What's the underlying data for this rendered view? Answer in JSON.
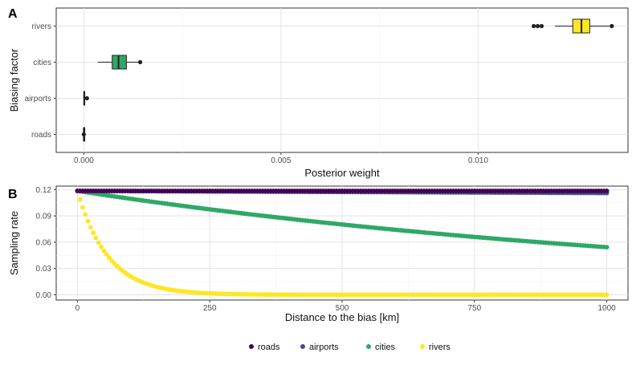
{
  "chart_data": [
    {
      "panel_tag": "A",
      "type": "box",
      "orientation": "horizontal",
      "xlabel": "Posterior weight",
      "ylabel": "Biasing factor",
      "xlim": [
        -0.0007,
        0.0138
      ],
      "xticks": [
        0.0,
        0.005,
        0.01
      ],
      "xtick_labels": [
        "0.000",
        "0.005",
        "0.010"
      ],
      "grid": true,
      "categories": [
        "roads",
        "airports",
        "cities",
        "rivers"
      ],
      "boxes": [
        {
          "category": "roads",
          "color": "#440154",
          "lower_whisker": 0.0,
          "q1": 0.0,
          "median": 0.0,
          "q3": 0.0,
          "upper_whisker": 2e-05,
          "outliers": [
            0.0
          ]
        },
        {
          "category": "airports",
          "color": "#3b528b",
          "lower_whisker": 0.0,
          "q1": 0.0,
          "median": 1e-05,
          "q3": 2e-05,
          "upper_whisker": 4e-05,
          "outliers": [
            8e-05
          ]
        },
        {
          "category": "cities",
          "color": "#2fa866",
          "lower_whisker": 0.00035,
          "q1": 0.00072,
          "median": 0.00088,
          "q3": 0.00108,
          "upper_whisker": 0.00143,
          "outliers": [
            0.00143
          ]
        },
        {
          "category": "rivers",
          "color": "#fde725",
          "lower_whisker": 0.01195,
          "q1": 0.0124,
          "median": 0.01262,
          "q3": 0.01283,
          "upper_whisker": 0.01339,
          "outliers": [
            0.01141,
            0.01151,
            0.01161,
            0.01339
          ]
        }
      ]
    },
    {
      "panel_tag": "B",
      "type": "scatter",
      "xlabel": "Distance to the bias [km]",
      "ylabel": "Sampling rate",
      "xlim": [
        -40,
        1040
      ],
      "ylim": [
        -0.006,
        0.124
      ],
      "xticks": [
        0,
        250,
        500,
        750,
        1000
      ],
      "xtick_labels": [
        "0",
        "250",
        "500",
        "750",
        "1000"
      ],
      "yticks": [
        0.0,
        0.03,
        0.06,
        0.09,
        0.12
      ],
      "ytick_labels": [
        "0.00",
        "0.03",
        "0.06",
        "0.09",
        "0.12"
      ],
      "grid": true,
      "legend_position": "bottom",
      "x_range": [
        0,
        1000
      ],
      "n_points": 201,
      "series": [
        {
          "name": "roads",
          "color": "#440154",
          "y0": 0.1185,
          "decay_per_km": 0.0
        },
        {
          "name": "airports",
          "color": "#3b528b",
          "y0": 0.1185,
          "decay_per_km": 2e-05
        },
        {
          "name": "cities",
          "color": "#2fa866",
          "y0": 0.1185,
          "decay_per_km": 0.00078
        },
        {
          "name": "rivers",
          "color": "#fde725",
          "y0": 0.1185,
          "decay_per_km": 0.0172
        }
      ]
    }
  ]
}
